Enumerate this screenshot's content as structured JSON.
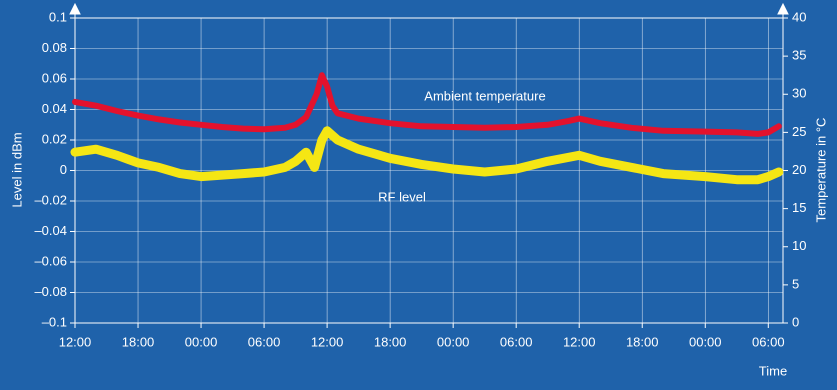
{
  "chart_data": {
    "type": "line",
    "xlabel": "Time",
    "ylabel": "Level in dBm",
    "y2label": "Temperature in °C",
    "xlim": [
      0,
      67.4
    ],
    "xticks": [
      {
        "value": 0,
        "label": "12:00"
      },
      {
        "value": 6,
        "label": "18:00"
      },
      {
        "value": 12,
        "label": "00:00"
      },
      {
        "value": 18,
        "label": "06:00"
      },
      {
        "value": 24,
        "label": "12:00"
      },
      {
        "value": 30,
        "label": "18:00"
      },
      {
        "value": 36,
        "label": "00:00"
      },
      {
        "value": 42,
        "label": "06:00"
      },
      {
        "value": 48,
        "label": "12:00"
      },
      {
        "value": 54,
        "label": "18:00"
      },
      {
        "value": 60,
        "label": "00:00"
      },
      {
        "value": 66,
        "label": "06:00"
      }
    ],
    "ylim": [
      -0.1,
      0.1
    ],
    "yticks": [
      {
        "value": -0.1,
        "label": "–0.1"
      },
      {
        "value": -0.08,
        "label": "–0.08"
      },
      {
        "value": -0.06,
        "label": "–0.06"
      },
      {
        "value": -0.04,
        "label": "–0.04"
      },
      {
        "value": -0.02,
        "label": "–0.02"
      },
      0,
      0.02,
      0.04,
      0.06,
      0.08,
      0.1
    ],
    "y2lim": [
      0,
      40
    ],
    "y2ticks": [
      0,
      5,
      10,
      15,
      20,
      25,
      30,
      35,
      40
    ],
    "grid": true,
    "series": [
      {
        "name": "Ambient temperature",
        "color": "#e3122d",
        "axis": "y2",
        "x": [
          0,
          2,
          4,
          6,
          8,
          10,
          12,
          14,
          16,
          18,
          20,
          21,
          22,
          23,
          23.5,
          24,
          24.5,
          25,
          27,
          30,
          33,
          36,
          39,
          42,
          45,
          47,
          48,
          50,
          53,
          56,
          60,
          63,
          65,
          66,
          67
        ],
        "values": [
          29,
          28.5,
          27.8,
          27.2,
          26.7,
          26.3,
          26,
          25.7,
          25.5,
          25.4,
          25.6,
          26,
          27,
          30,
          32.5,
          31,
          28.5,
          27.5,
          26.8,
          26.2,
          25.8,
          25.7,
          25.6,
          25.7,
          26,
          26.5,
          26.8,
          26.2,
          25.6,
          25.2,
          25.1,
          25,
          24.8,
          25,
          25.8
        ]
      },
      {
        "name": "RF level",
        "color": "#f5e614",
        "x": [
          0,
          2,
          4,
          6,
          8,
          10,
          12,
          14,
          16,
          18,
          20,
          21,
          22,
          22.8,
          23.5,
          24,
          25,
          27,
          30,
          33,
          36,
          39,
          42,
          45,
          48,
          50,
          53,
          56,
          60,
          63,
          65,
          66,
          67
        ],
        "values": [
          0.012,
          0.014,
          0.01,
          0.005,
          0.002,
          -0.002,
          -0.004,
          -0.003,
          -0.002,
          -0.001,
          0.002,
          0.006,
          0.012,
          0.002,
          0.02,
          0.026,
          0.02,
          0.014,
          0.008,
          0.004,
          0.001,
          -0.001,
          0.001,
          0.006,
          0.01,
          0.006,
          0.002,
          -0.002,
          -0.004,
          -0.006,
          -0.006,
          -0.004,
          -0.001
        ]
      }
    ]
  }
}
